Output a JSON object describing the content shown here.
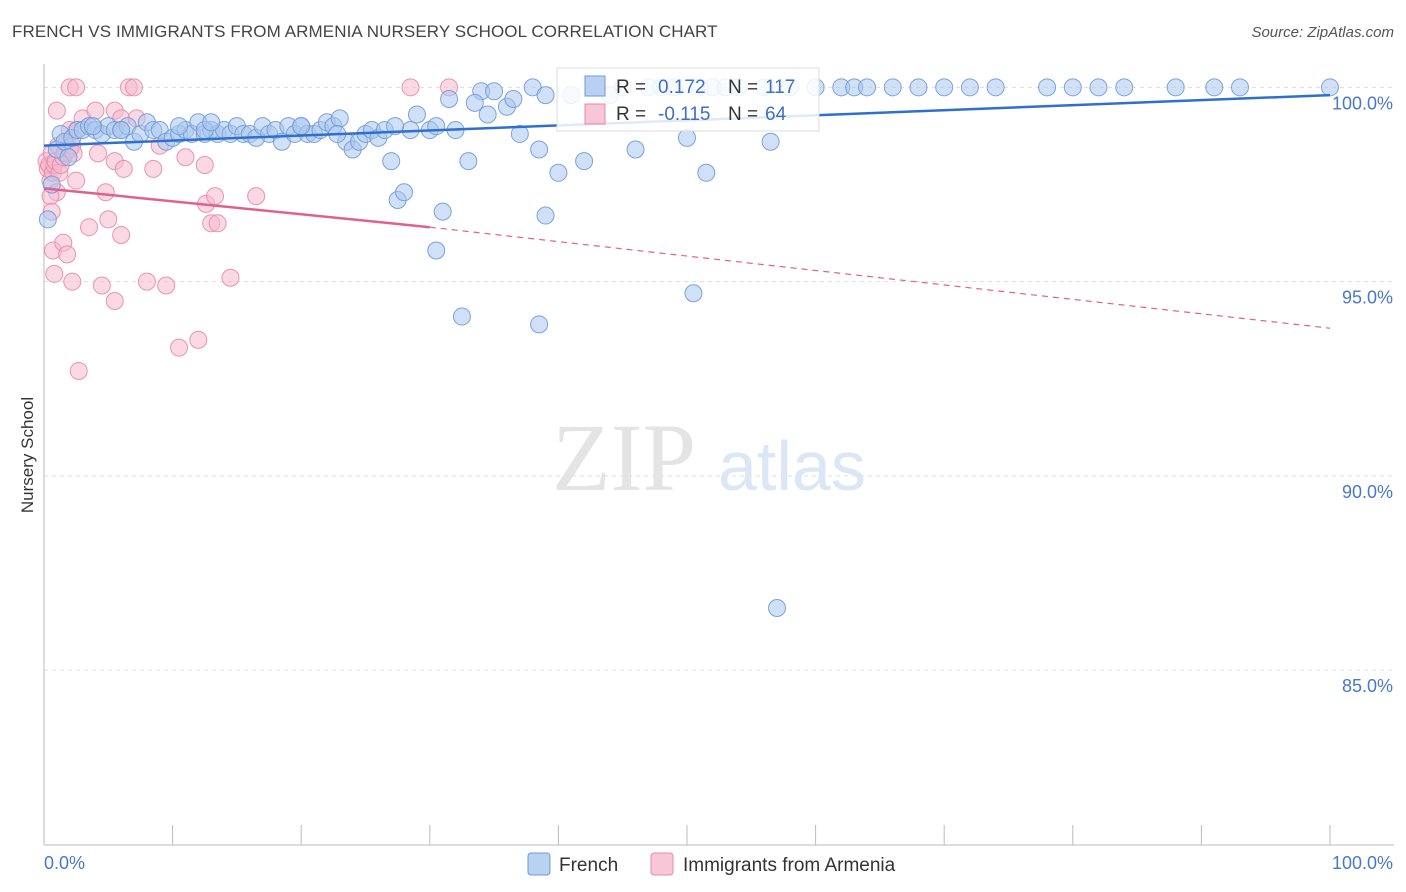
{
  "title": "FRENCH VS IMMIGRANTS FROM ARMENIA NURSERY SCHOOL CORRELATION CHART",
  "source": "Source: ZipAtlas.com",
  "watermark": {
    "zip": "ZIP",
    "atlas": "atlas"
  },
  "colors": {
    "french_fill": "#a9c6ef",
    "french_stroke": "#6f9ad8",
    "french_line": "#2e6fd0",
    "armenia_fill": "#f6b9cd",
    "armenia_stroke": "#e889a8",
    "armenia_line": "#e0608e",
    "grid": "#dddddd",
    "axis_label": "#4a78c8"
  },
  "stats": [
    {
      "r_label": "R =",
      "r_value": "0.172",
      "n_label": "N =",
      "n_value": "117"
    },
    {
      "r_label": "R =",
      "r_value": "-0.115",
      "n_label": "N =",
      "n_value": "64"
    }
  ],
  "chart_data": {
    "type": "scatter",
    "title": "FRENCH VS IMMIGRANTS FROM ARMENIA NURSERY SCHOOL CORRELATION CHART",
    "xlabel": "",
    "ylabel": "Nursery School",
    "xlim": [
      0,
      100
    ],
    "ylim": [
      80.5,
      100.6
    ],
    "x_tick_labels": [
      "0.0%",
      "100.0%"
    ],
    "y_ticks": [
      100,
      95,
      90,
      85
    ],
    "y_tick_labels": [
      "100.0%",
      "95.0%",
      "90.0%",
      "85.0%"
    ],
    "grid": true,
    "legend_position": "bottom-center",
    "series": [
      {
        "name": "French",
        "trend": {
          "x": [
            0,
            100
          ],
          "y": [
            98.5,
            99.8
          ],
          "style": "solid"
        },
        "points": [
          [
            0.3,
            96.6
          ],
          [
            0.6,
            97.5
          ],
          [
            1.0,
            98.4
          ],
          [
            1.3,
            98.8
          ],
          [
            1.6,
            98.6
          ],
          [
            1.9,
            98.2
          ],
          [
            2.2,
            98.7
          ],
          [
            2.6,
            98.9
          ],
          [
            3.0,
            98.9
          ],
          [
            3.5,
            99.0
          ],
          [
            4.0,
            98.9
          ],
          [
            4.5,
            98.8
          ],
          [
            5.0,
            99.0
          ],
          [
            5.5,
            98.9
          ],
          [
            6.0,
            98.9
          ],
          [
            6.5,
            99.0
          ],
          [
            7.0,
            98.6
          ],
          [
            7.5,
            98.8
          ],
          [
            8.0,
            99.1
          ],
          [
            8.5,
            98.9
          ],
          [
            9.0,
            98.9
          ],
          [
            9.5,
            98.6
          ],
          [
            10.0,
            98.7
          ],
          [
            10.5,
            98.8
          ],
          [
            11.0,
            98.9
          ],
          [
            11.5,
            98.8
          ],
          [
            12.0,
            99.1
          ],
          [
            12.5,
            98.8
          ],
          [
            13.0,
            98.9
          ],
          [
            13.5,
            98.8
          ],
          [
            14.0,
            98.9
          ],
          [
            14.5,
            98.8
          ],
          [
            15.0,
            99.0
          ],
          [
            15.5,
            98.8
          ],
          [
            16.0,
            98.8
          ],
          [
            16.5,
            98.7
          ],
          [
            17.0,
            99.0
          ],
          [
            17.5,
            98.8
          ],
          [
            18.0,
            98.9
          ],
          [
            18.5,
            98.6
          ],
          [
            19.0,
            99.0
          ],
          [
            19.5,
            98.8
          ],
          [
            20.0,
            99.0
          ],
          [
            20.5,
            98.8
          ],
          [
            21.0,
            98.8
          ],
          [
            21.5,
            98.9
          ],
          [
            22.0,
            99.1
          ],
          [
            22.5,
            99.0
          ],
          [
            23.0,
            99.2
          ],
          [
            23.5,
            98.6
          ],
          [
            24.0,
            98.4
          ],
          [
            24.5,
            98.6
          ],
          [
            25.0,
            98.8
          ],
          [
            25.5,
            98.9
          ],
          [
            26.0,
            98.7
          ],
          [
            26.5,
            98.9
          ],
          [
            27.0,
            98.1
          ],
          [
            27.5,
            97.1
          ],
          [
            28.0,
            97.3
          ],
          [
            28.5,
            98.9
          ],
          [
            29.0,
            99.3
          ],
          [
            30.0,
            98.9
          ],
          [
            30.5,
            99.0
          ],
          [
            31.5,
            99.7
          ],
          [
            32.0,
            98.9
          ],
          [
            33.0,
            98.1
          ],
          [
            34.0,
            99.9
          ],
          [
            34.5,
            99.3
          ],
          [
            35.0,
            99.9
          ],
          [
            36.0,
            99.5
          ],
          [
            36.5,
            99.7
          ],
          [
            37.0,
            98.8
          ],
          [
            38.0,
            100.0
          ],
          [
            38.5,
            98.4
          ],
          [
            39.0,
            99.8
          ],
          [
            40.0,
            97.8
          ],
          [
            41.0,
            99.8
          ],
          [
            42.0,
            98.1
          ],
          [
            43.0,
            100.0
          ],
          [
            44.0,
            99.8
          ],
          [
            45.0,
            100.0
          ],
          [
            46.0,
            98.4
          ],
          [
            47.0,
            100.0
          ],
          [
            48.0,
            100.0
          ],
          [
            49.0,
            100.0
          ],
          [
            50.0,
            98.7
          ],
          [
            51.0,
            100.0
          ],
          [
            52.0,
            100.0
          ],
          [
            53.0,
            100.0
          ],
          [
            54.0,
            100.0
          ],
          [
            56.0,
            100.0
          ],
          [
            58.0,
            100.0
          ],
          [
            60.0,
            100.0
          ],
          [
            62.0,
            100.0
          ],
          [
            63.0,
            100.0
          ],
          [
            64.0,
            100.0
          ],
          [
            66.0,
            100.0
          ],
          [
            68.0,
            100.0
          ],
          [
            70.0,
            100.0
          ],
          [
            72.0,
            100.0
          ],
          [
            74.0,
            100.0
          ],
          [
            78.0,
            100.0
          ],
          [
            80.0,
            100.0
          ],
          [
            82.0,
            100.0
          ],
          [
            84.0,
            100.0
          ],
          [
            88.0,
            100.0
          ],
          [
            91.0,
            100.0
          ],
          [
            93.0,
            100.0
          ],
          [
            100.0,
            100.0
          ],
          [
            31.0,
            96.8
          ],
          [
            30.5,
            95.8
          ],
          [
            32.5,
            94.1
          ],
          [
            38.5,
            93.9
          ],
          [
            39.0,
            96.7
          ],
          [
            50.5,
            94.7
          ],
          [
            51.5,
            97.8
          ],
          [
            56.5,
            98.6
          ],
          [
            57.0,
            86.6
          ],
          [
            20.0,
            99.0
          ],
          [
            10.5,
            99.0
          ],
          [
            6.0,
            98.9
          ],
          [
            3.8,
            99.0
          ],
          [
            12.5,
            98.9
          ],
          [
            22.8,
            98.8
          ],
          [
            27.3,
            99.0
          ],
          [
            33.5,
            99.6
          ],
          [
            13.0,
            99.1
          ]
        ]
      },
      {
        "name": "Immigrants from Armenia",
        "trend": {
          "x": [
            0,
            30
          ],
          "y": [
            97.4,
            96.4
          ],
          "style": "solid"
        },
        "trend_dashed": {
          "x": [
            30,
            100
          ],
          "y": [
            96.4,
            93.8
          ],
          "style": "dashed"
        },
        "points": [
          [
            0.2,
            98.1
          ],
          [
            0.3,
            97.9
          ],
          [
            0.4,
            98.0
          ],
          [
            0.5,
            97.6
          ],
          [
            0.6,
            98.3
          ],
          [
            0.7,
            97.8
          ],
          [
            0.8,
            98.0
          ],
          [
            0.9,
            98.1
          ],
          [
            1.0,
            97.3
          ],
          [
            1.1,
            98.5
          ],
          [
            1.2,
            97.8
          ],
          [
            1.3,
            98.0
          ],
          [
            1.5,
            98.2
          ],
          [
            1.6,
            98.3
          ],
          [
            1.8,
            98.6
          ],
          [
            2.0,
            98.4
          ],
          [
            2.2,
            98.5
          ],
          [
            2.5,
            98.9
          ],
          [
            0.5,
            97.2
          ],
          [
            0.6,
            96.8
          ],
          [
            0.7,
            95.8
          ],
          [
            0.8,
            95.2
          ],
          [
            1.0,
            99.4
          ],
          [
            1.5,
            96.0
          ],
          [
            1.8,
            95.7
          ],
          [
            2.2,
            95.0
          ],
          [
            2.5,
            97.6
          ],
          [
            2.7,
            92.7
          ],
          [
            3.0,
            99.2
          ],
          [
            3.5,
            96.4
          ],
          [
            4.0,
            99.4
          ],
          [
            4.2,
            98.3
          ],
          [
            4.5,
            94.9
          ],
          [
            5.0,
            96.6
          ],
          [
            4.8,
            97.3
          ],
          [
            5.5,
            94.5
          ],
          [
            5.5,
            98.1
          ],
          [
            6.0,
            96.2
          ],
          [
            6.2,
            97.9
          ],
          [
            6.6,
            100.0
          ],
          [
            7.0,
            100.0
          ],
          [
            5.5,
            99.4
          ],
          [
            6.0,
            99.2
          ],
          [
            7.2,
            99.2
          ],
          [
            8.0,
            95.0
          ],
          [
            8.5,
            97.9
          ],
          [
            9.0,
            98.5
          ],
          [
            9.5,
            94.9
          ],
          [
            10.5,
            93.3
          ],
          [
            11.0,
            98.2
          ],
          [
            12.5,
            98.0
          ],
          [
            12.0,
            93.5
          ],
          [
            12.6,
            97.0
          ],
          [
            13.0,
            96.5
          ],
          [
            13.3,
            97.2
          ],
          [
            13.5,
            96.5
          ],
          [
            14.5,
            95.1
          ],
          [
            16.5,
            97.2
          ],
          [
            2.0,
            100.0
          ],
          [
            2.5,
            100.0
          ],
          [
            31.5,
            100.0
          ],
          [
            28.5,
            100.0
          ],
          [
            2.0,
            98.9
          ],
          [
            2.3,
            98.3
          ]
        ]
      }
    ]
  },
  "legend": {
    "items": [
      {
        "label": "French"
      },
      {
        "label": "Immigrants from Armenia"
      }
    ]
  }
}
